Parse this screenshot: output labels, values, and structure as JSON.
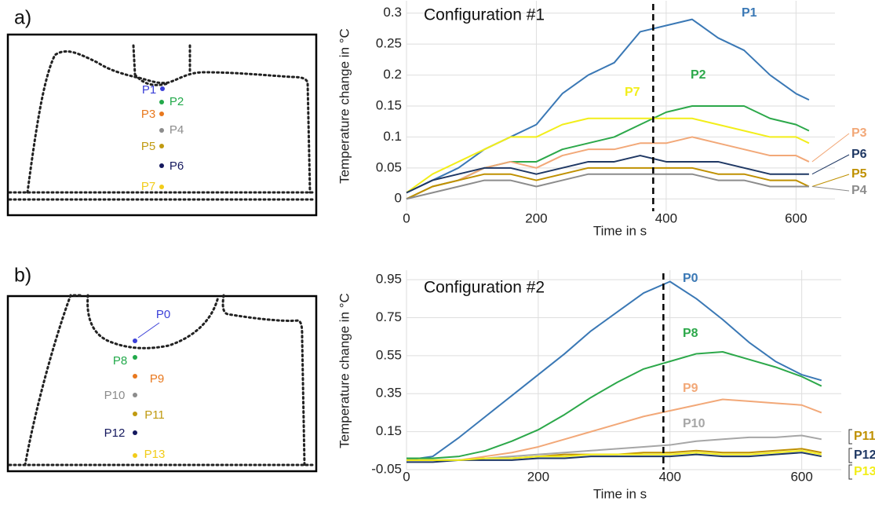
{
  "panel_labels": [
    "a)",
    "b)"
  ],
  "schematics": [
    {
      "points": [
        {
          "label": "P1",
          "color": "#3a3fd8"
        },
        {
          "label": "P2",
          "color": "#22a94a"
        },
        {
          "label": "P3",
          "color": "#e8781e"
        },
        {
          "label": "P4",
          "color": "#8c8c8c"
        },
        {
          "label": "P5",
          "color": "#c09a10"
        },
        {
          "label": "P6",
          "color": "#14185e"
        },
        {
          "label": "P7",
          "color": "#f2cc1a"
        }
      ]
    },
    {
      "points": [
        {
          "label": "P0",
          "color": "#3a3fd8"
        },
        {
          "label": "P8",
          "color": "#22a94a"
        },
        {
          "label": "P9",
          "color": "#e8781e"
        },
        {
          "label": "P10",
          "color": "#8c8c8c"
        },
        {
          "label": "P11",
          "color": "#c09a10"
        },
        {
          "label": "P12",
          "color": "#14185e"
        },
        {
          "label": "P13",
          "color": "#f2cc1a"
        }
      ]
    }
  ],
  "chart_data": [
    {
      "type": "line",
      "title": "Configuration #1",
      "x_label": "Time in s",
      "y_label": "Temperature change in °C",
      "xlim": [
        0,
        660
      ],
      "ylim": [
        -0.02,
        0.32
      ],
      "xticks": [
        0,
        200,
        400,
        600
      ],
      "yticks": [
        0,
        0.05,
        0.1,
        0.15,
        0.2,
        0.25,
        0.3
      ],
      "grid": true,
      "vline": 380,
      "x": [
        0,
        40,
        80,
        120,
        160,
        200,
        240,
        280,
        320,
        360,
        400,
        440,
        480,
        520,
        560,
        600,
        620
      ],
      "series": [
        {
          "name": "P1",
          "color": "#3a78b5",
          "values": [
            0.01,
            0.03,
            0.05,
            0.08,
            0.1,
            0.12,
            0.17,
            0.2,
            0.22,
            0.27,
            0.28,
            0.29,
            0.26,
            0.24,
            0.2,
            0.17,
            0.16
          ]
        },
        {
          "name": "P2",
          "color": "#2ca84a",
          "values": [
            0,
            0.02,
            0.03,
            0.05,
            0.06,
            0.06,
            0.08,
            0.09,
            0.1,
            0.12,
            0.14,
            0.15,
            0.15,
            0.15,
            0.13,
            0.12,
            0.11
          ]
        },
        {
          "name": "P7",
          "color": "#f2ee1a",
          "values": [
            0.01,
            0.04,
            0.06,
            0.08,
            0.1,
            0.1,
            0.12,
            0.13,
            0.13,
            0.13,
            0.13,
            0.13,
            0.12,
            0.11,
            0.1,
            0.1,
            0.09
          ]
        },
        {
          "name": "P3",
          "color": "#f2a878",
          "values": [
            0,
            0.02,
            0.03,
            0.05,
            0.06,
            0.05,
            0.07,
            0.08,
            0.08,
            0.09,
            0.09,
            0.1,
            0.09,
            0.08,
            0.07,
            0.07,
            0.06
          ]
        },
        {
          "name": "P6",
          "color": "#1f3864",
          "values": [
            0.01,
            0.03,
            0.04,
            0.05,
            0.05,
            0.04,
            0.05,
            0.06,
            0.06,
            0.07,
            0.06,
            0.06,
            0.06,
            0.05,
            0.04,
            0.04,
            0.04
          ]
        },
        {
          "name": "P5",
          "color": "#bf9000",
          "values": [
            0,
            0.02,
            0.03,
            0.04,
            0.04,
            0.03,
            0.04,
            0.05,
            0.05,
            0.05,
            0.05,
            0.05,
            0.04,
            0.04,
            0.03,
            0.03,
            0.02
          ]
        },
        {
          "name": "P4",
          "color": "#8c8c8c",
          "values": [
            0,
            0.01,
            0.02,
            0.03,
            0.03,
            0.02,
            0.03,
            0.04,
            0.04,
            0.04,
            0.04,
            0.04,
            0.03,
            0.03,
            0.02,
            0.02,
            0.02
          ]
        }
      ]
    },
    {
      "type": "line",
      "title": "Configuration #2",
      "x_label": "Time in s",
      "y_label": "Temperature change in °C",
      "xlim": [
        0,
        660
      ],
      "ylim": [
        -0.05,
        1.0
      ],
      "xticks": [
        0,
        200,
        400,
        600
      ],
      "yticks": [
        -0.05,
        0.15,
        0.35,
        0.55,
        0.75,
        0.95
      ],
      "grid": true,
      "vline": 390,
      "x": [
        0,
        40,
        80,
        120,
        160,
        200,
        240,
        280,
        320,
        360,
        400,
        440,
        480,
        520,
        560,
        600,
        630
      ],
      "series": [
        {
          "name": "P0",
          "color": "#3a78b5",
          "values": [
            0,
            0.02,
            0.12,
            0.23,
            0.34,
            0.45,
            0.56,
            0.68,
            0.78,
            0.88,
            0.94,
            0.85,
            0.74,
            0.62,
            0.52,
            0.45,
            0.42
          ]
        },
        {
          "name": "P8",
          "color": "#2ca84a",
          "values": [
            0.01,
            0.01,
            0.02,
            0.05,
            0.1,
            0.16,
            0.24,
            0.33,
            0.41,
            0.48,
            0.52,
            0.56,
            0.57,
            0.53,
            0.49,
            0.44,
            0.39
          ]
        },
        {
          "name": "P9",
          "color": "#f2a878",
          "values": [
            0,
            0,
            0,
            0.02,
            0.04,
            0.07,
            0.11,
            0.15,
            0.19,
            0.23,
            0.26,
            0.29,
            0.32,
            0.31,
            0.3,
            0.29,
            0.25
          ]
        },
        {
          "name": "P10",
          "color": "#a6a6a6",
          "values": [
            0,
            0,
            0,
            0.01,
            0.02,
            0.03,
            0.04,
            0.05,
            0.06,
            0.07,
            0.08,
            0.1,
            0.11,
            0.12,
            0.12,
            0.13,
            0.11
          ]
        },
        {
          "name": "P11",
          "color": "#bf9000",
          "values": [
            0,
            0,
            0,
            0.01,
            0.01,
            0.02,
            0.03,
            0.03,
            0.03,
            0.04,
            0.04,
            0.05,
            0.04,
            0.04,
            0.05,
            0.06,
            0.04
          ]
        },
        {
          "name": "P12",
          "color": "#1f3864",
          "values": [
            -0.01,
            -0.01,
            0,
            0,
            0,
            0.01,
            0.01,
            0.02,
            0.02,
            0.02,
            0.02,
            0.03,
            0.02,
            0.02,
            0.03,
            0.04,
            0.02
          ]
        },
        {
          "name": "P13",
          "color": "#f2ee1a",
          "values": [
            0,
            0,
            0,
            0.01,
            0.01,
            0.02,
            0.02,
            0.03,
            0.03,
            0.03,
            0.03,
            0.04,
            0.03,
            0.03,
            0.04,
            0.05,
            0.03
          ]
        }
      ]
    }
  ]
}
